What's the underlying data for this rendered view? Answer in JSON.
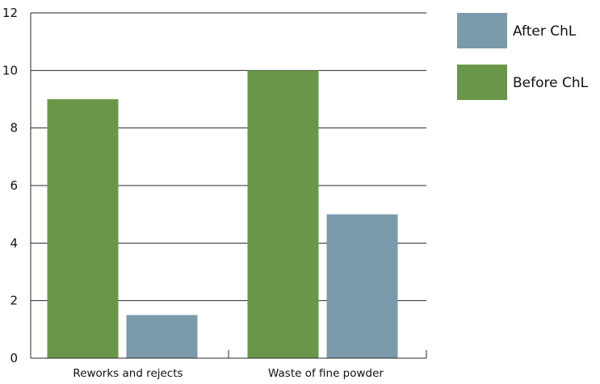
{
  "chart_data": {
    "type": "bar",
    "title": "",
    "xlabel": "",
    "ylabel": "",
    "categories": [
      "Reworks and rejects",
      "Waste of fine powder"
    ],
    "series": [
      {
        "name": "Before ChL",
        "values": [
          9,
          10
        ],
        "color": "#6a964a"
      },
      {
        "name": "After ChL",
        "values": [
          1.5,
          5
        ],
        "color": "#7b9aab"
      }
    ],
    "ylim": [
      0,
      12
    ],
    "yticks": [
      0,
      2,
      4,
      6,
      8,
      10,
      12
    ],
    "grid": true,
    "legend": {
      "placement": "top-right",
      "entries": [
        {
          "label": "After ChL",
          "color": "#7b9aab"
        },
        {
          "label": "Before ChL",
          "color": "#6a964a"
        }
      ]
    }
  }
}
